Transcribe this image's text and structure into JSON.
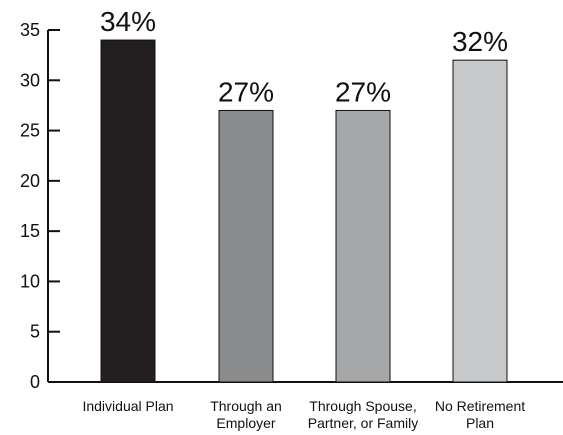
{
  "chart_data": {
    "type": "bar",
    "title": "",
    "xlabel": "",
    "ylabel": "",
    "categories": [
      [
        "Individual Plan"
      ],
      [
        "Through an",
        "Employer"
      ],
      [
        "Through Spouse,",
        "Partner, or Family"
      ],
      [
        "No Retirement",
        "Plan"
      ]
    ],
    "values": [
      34,
      27,
      27,
      32
    ],
    "data_labels": [
      "34%",
      "27%",
      "27%",
      "32%"
    ],
    "ylim": [
      0,
      35
    ],
    "yticks": [
      0,
      5,
      10,
      15,
      20,
      25,
      30,
      35
    ],
    "bar_colors": [
      "#231f20",
      "#8a8b8d",
      "#a6a7a9",
      "#c8c9cb"
    ],
    "grid": false,
    "legend": "none"
  }
}
